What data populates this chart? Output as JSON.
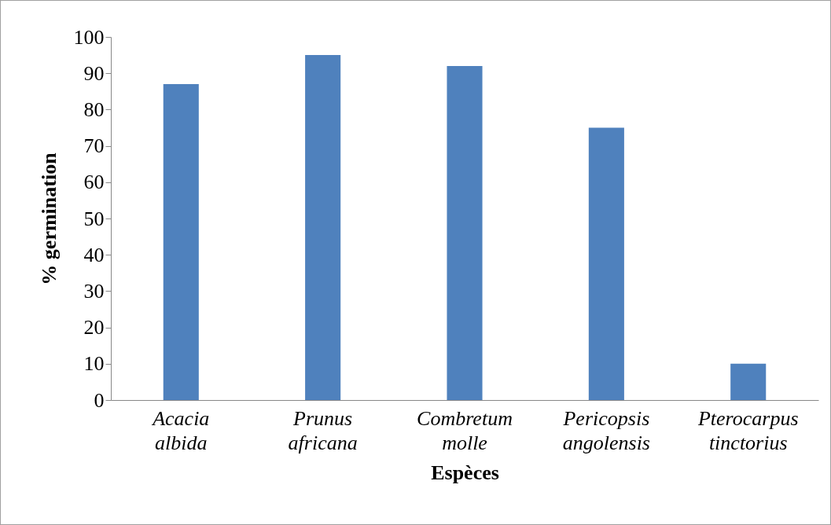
{
  "chart_data": {
    "type": "bar",
    "xlabel": "Espèces",
    "ylabel": "%  germination",
    "categories": [
      "Acacia albida",
      "Prunus africana",
      "Combretum molle",
      "Pericopsis angolensis",
      "Pterocarpus tinctorius"
    ],
    "values": [
      87,
      95,
      92,
      75,
      10
    ],
    "color": "#4f81bd",
    "ylim": [
      0,
      100
    ],
    "yticks": [
      0,
      10,
      20,
      30,
      40,
      50,
      60,
      70,
      80,
      90,
      100
    ]
  }
}
